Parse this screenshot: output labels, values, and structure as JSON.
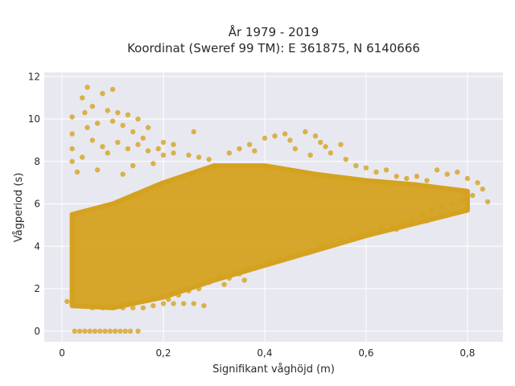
{
  "chart_data": {
    "type": "scatter",
    "title": "År 1979 - 2019",
    "subtitle": "Koordinat (Sweref 99 TM): E 361875, N 6140666",
    "xlabel": "Signifikant våghöjd (m)",
    "ylabel": "Vågperiod (s)",
    "xlim": [
      -0.035,
      0.87
    ],
    "ylim": [
      -0.5,
      12.2
    ],
    "x_ticks": [
      0,
      0.2,
      0.4,
      0.6,
      0.8
    ],
    "x_tick_labels": [
      "0",
      "0,2",
      "0,4",
      "0,6",
      "0,8"
    ],
    "y_ticks": [
      0,
      2,
      4,
      6,
      8,
      10,
      12
    ],
    "y_tick_labels": [
      "0",
      "2",
      "4",
      "6",
      "8",
      "10",
      "12"
    ],
    "grid": true,
    "marker_color": "#d4a21f",
    "plot_background": "#e8e8f0",
    "grid_color": "#ffffff",
    "dense_region_lower": [
      [
        0.02,
        1.2
      ],
      [
        0.1,
        1.1
      ],
      [
        0.2,
        1.6
      ],
      [
        0.3,
        2.4
      ],
      [
        0.4,
        3.1
      ],
      [
        0.5,
        3.8
      ],
      [
        0.6,
        4.5
      ],
      [
        0.7,
        5.1
      ],
      [
        0.8,
        5.7
      ]
    ],
    "dense_region_upper": [
      [
        0.02,
        5.5
      ],
      [
        0.1,
        6.0
      ],
      [
        0.2,
        7.0
      ],
      [
        0.3,
        7.8
      ],
      [
        0.4,
        7.8
      ],
      [
        0.5,
        7.4
      ],
      [
        0.6,
        7.1
      ],
      [
        0.7,
        6.9
      ],
      [
        0.8,
        6.6
      ]
    ],
    "points": [
      {
        "x": 0.025,
        "y": 0.0
      },
      {
        "x": 0.035,
        "y": 0.0
      },
      {
        "x": 0.045,
        "y": 0.0
      },
      {
        "x": 0.055,
        "y": 0.0
      },
      {
        "x": 0.065,
        "y": 0.0
      },
      {
        "x": 0.075,
        "y": 0.0
      },
      {
        "x": 0.085,
        "y": 0.0
      },
      {
        "x": 0.095,
        "y": 0.0
      },
      {
        "x": 0.105,
        "y": 0.0
      },
      {
        "x": 0.115,
        "y": 0.0
      },
      {
        "x": 0.125,
        "y": 0.0
      },
      {
        "x": 0.135,
        "y": 0.0
      },
      {
        "x": 0.15,
        "y": 0.0
      },
      {
        "x": 0.01,
        "y": 1.4
      },
      {
        "x": 0.02,
        "y": 1.9
      },
      {
        "x": 0.03,
        "y": 1.2
      },
      {
        "x": 0.05,
        "y": 11.5
      },
      {
        "x": 0.1,
        "y": 11.4
      },
      {
        "x": 0.04,
        "y": 11.0
      },
      {
        "x": 0.08,
        "y": 11.2
      },
      {
        "x": 0.02,
        "y": 10.1
      },
      {
        "x": 0.045,
        "y": 10.3
      },
      {
        "x": 0.06,
        "y": 10.6
      },
      {
        "x": 0.09,
        "y": 10.4
      },
      {
        "x": 0.11,
        "y": 10.3
      },
      {
        "x": 0.13,
        "y": 10.2
      },
      {
        "x": 0.15,
        "y": 10.0
      },
      {
        "x": 0.17,
        "y": 9.6
      },
      {
        "x": 0.02,
        "y": 9.3
      },
      {
        "x": 0.05,
        "y": 9.6
      },
      {
        "x": 0.07,
        "y": 9.8
      },
      {
        "x": 0.1,
        "y": 9.9
      },
      {
        "x": 0.12,
        "y": 9.7
      },
      {
        "x": 0.14,
        "y": 9.4
      },
      {
        "x": 0.16,
        "y": 9.1
      },
      {
        "x": 0.06,
        "y": 9.0
      },
      {
        "x": 0.08,
        "y": 8.7
      },
      {
        "x": 0.11,
        "y": 8.9
      },
      {
        "x": 0.13,
        "y": 8.6
      },
      {
        "x": 0.15,
        "y": 8.8
      },
      {
        "x": 0.02,
        "y": 8.6
      },
      {
        "x": 0.04,
        "y": 8.2
      },
      {
        "x": 0.09,
        "y": 8.4
      },
      {
        "x": 0.17,
        "y": 8.5
      },
      {
        "x": 0.19,
        "y": 8.6
      },
      {
        "x": 0.2,
        "y": 8.3
      },
      {
        "x": 0.22,
        "y": 8.4
      },
      {
        "x": 0.25,
        "y": 8.3
      },
      {
        "x": 0.27,
        "y": 8.2
      },
      {
        "x": 0.29,
        "y": 8.1
      },
      {
        "x": 0.02,
        "y": 8.0
      },
      {
        "x": 0.03,
        "y": 7.5
      },
      {
        "x": 0.07,
        "y": 7.6
      },
      {
        "x": 0.12,
        "y": 7.4
      },
      {
        "x": 0.14,
        "y": 7.8
      },
      {
        "x": 0.18,
        "y": 7.9
      },
      {
        "x": 0.26,
        "y": 9.4
      },
      {
        "x": 0.22,
        "y": 8.8
      },
      {
        "x": 0.2,
        "y": 8.9
      },
      {
        "x": 0.35,
        "y": 8.6
      },
      {
        "x": 0.37,
        "y": 8.8
      },
      {
        "x": 0.4,
        "y": 9.1
      },
      {
        "x": 0.42,
        "y": 9.2
      },
      {
        "x": 0.44,
        "y": 9.3
      },
      {
        "x": 0.45,
        "y": 9.0
      },
      {
        "x": 0.48,
        "y": 9.4
      },
      {
        "x": 0.5,
        "y": 9.2
      },
      {
        "x": 0.51,
        "y": 8.9
      },
      {
        "x": 0.52,
        "y": 8.7
      },
      {
        "x": 0.55,
        "y": 8.8
      },
      {
        "x": 0.33,
        "y": 8.4
      },
      {
        "x": 0.38,
        "y": 8.5
      },
      {
        "x": 0.46,
        "y": 8.6
      },
      {
        "x": 0.49,
        "y": 8.3
      },
      {
        "x": 0.53,
        "y": 8.4
      },
      {
        "x": 0.56,
        "y": 8.1
      },
      {
        "x": 0.58,
        "y": 7.8
      },
      {
        "x": 0.6,
        "y": 7.7
      },
      {
        "x": 0.62,
        "y": 7.5
      },
      {
        "x": 0.64,
        "y": 7.6
      },
      {
        "x": 0.66,
        "y": 7.3
      },
      {
        "x": 0.68,
        "y": 7.2
      },
      {
        "x": 0.7,
        "y": 7.3
      },
      {
        "x": 0.72,
        "y": 7.1
      },
      {
        "x": 0.74,
        "y": 7.6
      },
      {
        "x": 0.76,
        "y": 7.4
      },
      {
        "x": 0.78,
        "y": 7.5
      },
      {
        "x": 0.8,
        "y": 7.2
      },
      {
        "x": 0.82,
        "y": 7.0
      },
      {
        "x": 0.83,
        "y": 6.7
      },
      {
        "x": 0.81,
        "y": 6.4
      },
      {
        "x": 0.79,
        "y": 6.2
      },
      {
        "x": 0.77,
        "y": 6.0
      },
      {
        "x": 0.75,
        "y": 5.9
      },
      {
        "x": 0.73,
        "y": 5.7
      },
      {
        "x": 0.71,
        "y": 5.5
      },
      {
        "x": 0.69,
        "y": 5.3
      },
      {
        "x": 0.67,
        "y": 5.1
      },
      {
        "x": 0.65,
        "y": 5.0
      },
      {
        "x": 0.63,
        "y": 4.9
      },
      {
        "x": 0.61,
        "y": 4.7
      },
      {
        "x": 0.59,
        "y": 4.6
      },
      {
        "x": 0.57,
        "y": 4.4
      },
      {
        "x": 0.55,
        "y": 4.3
      },
      {
        "x": 0.53,
        "y": 4.1
      },
      {
        "x": 0.51,
        "y": 4.0
      },
      {
        "x": 0.49,
        "y": 3.8
      },
      {
        "x": 0.47,
        "y": 3.7
      },
      {
        "x": 0.45,
        "y": 3.5
      },
      {
        "x": 0.43,
        "y": 3.4
      },
      {
        "x": 0.41,
        "y": 3.3
      },
      {
        "x": 0.39,
        "y": 3.1
      },
      {
        "x": 0.37,
        "y": 3.0
      },
      {
        "x": 0.35,
        "y": 2.7
      },
      {
        "x": 0.33,
        "y": 2.5
      },
      {
        "x": 0.31,
        "y": 2.6
      },
      {
        "x": 0.29,
        "y": 2.3
      },
      {
        "x": 0.27,
        "y": 2.0
      },
      {
        "x": 0.25,
        "y": 1.9
      },
      {
        "x": 0.23,
        "y": 1.7
      },
      {
        "x": 0.21,
        "y": 1.5
      },
      {
        "x": 0.2,
        "y": 1.3
      },
      {
        "x": 0.22,
        "y": 1.3
      },
      {
        "x": 0.24,
        "y": 1.3
      },
      {
        "x": 0.26,
        "y": 1.3
      },
      {
        "x": 0.28,
        "y": 1.2
      },
      {
        "x": 0.18,
        "y": 1.2
      },
      {
        "x": 0.16,
        "y": 1.1
      },
      {
        "x": 0.14,
        "y": 1.1
      },
      {
        "x": 0.12,
        "y": 1.1
      },
      {
        "x": 0.1,
        "y": 1.1
      },
      {
        "x": 0.08,
        "y": 1.1
      },
      {
        "x": 0.06,
        "y": 1.1
      },
      {
        "x": 0.04,
        "y": 1.2
      },
      {
        "x": 0.36,
        "y": 2.4
      },
      {
        "x": 0.32,
        "y": 2.2
      },
      {
        "x": 0.84,
        "y": 6.1
      },
      {
        "x": 0.8,
        "y": 5.8
      },
      {
        "x": 0.72,
        "y": 5.2
      },
      {
        "x": 0.66,
        "y": 4.8
      }
    ]
  }
}
